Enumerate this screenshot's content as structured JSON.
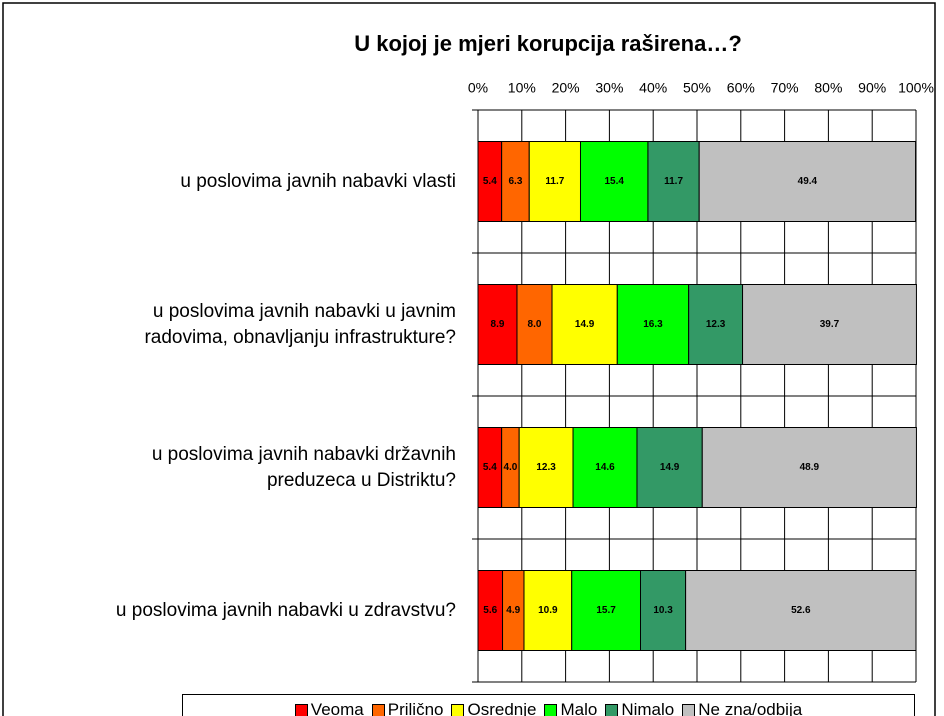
{
  "chart_data": {
    "type": "stacked-bar-horizontal",
    "title": "U kojoj je mjeri korupcija raširena…?",
    "categories": [
      "u poslovima javnih nabavki vlasti",
      "u poslovima javnih nabavki u javnim\nradovima, obnavljanju infrastrukture?",
      "u poslovima javnih nabavki državnih\npreduzeca u Distriktu?",
      "u poslovima javnih nabavki u zdravstvu?"
    ],
    "series": [
      {
        "name": "Veoma",
        "color": "#ff0000",
        "values": [
          5.4,
          8.9,
          5.4,
          5.6
        ],
        "value_labels": [
          "5.4",
          "8.9",
          "5.4",
          "5.6"
        ]
      },
      {
        "name": "Prilično",
        "color": "#ff6600",
        "values": [
          6.3,
          8.0,
          4.0,
          4.9
        ],
        "value_labels": [
          "6.3",
          "8.0",
          "4.0",
          "4.9"
        ]
      },
      {
        "name": "Osrednje",
        "color": "#ffff00",
        "values": [
          11.7,
          14.9,
          12.3,
          10.9
        ],
        "value_labels": [
          "11.7",
          "14.9",
          "12.3",
          "10.9"
        ]
      },
      {
        "name": "Malo",
        "color": "#00ff00",
        "values": [
          15.4,
          16.3,
          14.6,
          15.7
        ],
        "value_labels": [
          "15.4",
          "16.3",
          "14.6",
          "15.7"
        ]
      },
      {
        "name": "Nimalo",
        "color": "#339966",
        "values": [
          11.7,
          12.3,
          14.9,
          10.3
        ],
        "value_labels": [
          "11.7",
          "12.3",
          "14.9",
          "10.3"
        ]
      },
      {
        "name": "Ne zna/odbija",
        "color": "#c0c0c0",
        "values": [
          49.4,
          39.7,
          48.9,
          52.6
        ],
        "value_labels": [
          "49.4",
          "39.7",
          "48.9",
          "52.6"
        ]
      }
    ],
    "xlim": [
      0,
      100
    ],
    "xticks": [
      {
        "value": 0,
        "label": "0%"
      },
      {
        "value": 10,
        "label": "10%"
      },
      {
        "value": 20,
        "label": "20%"
      },
      {
        "value": 30,
        "label": "30%"
      },
      {
        "value": 40,
        "label": "40%"
      },
      {
        "value": 50,
        "label": "50%"
      },
      {
        "value": 60,
        "label": "60%"
      },
      {
        "value": 70,
        "label": "70%"
      },
      {
        "value": 80,
        "label": "80%"
      },
      {
        "value": 90,
        "label": "90%"
      },
      {
        "value": 100,
        "label": "100%"
      }
    ],
    "grid": true,
    "legend": "bottom"
  }
}
